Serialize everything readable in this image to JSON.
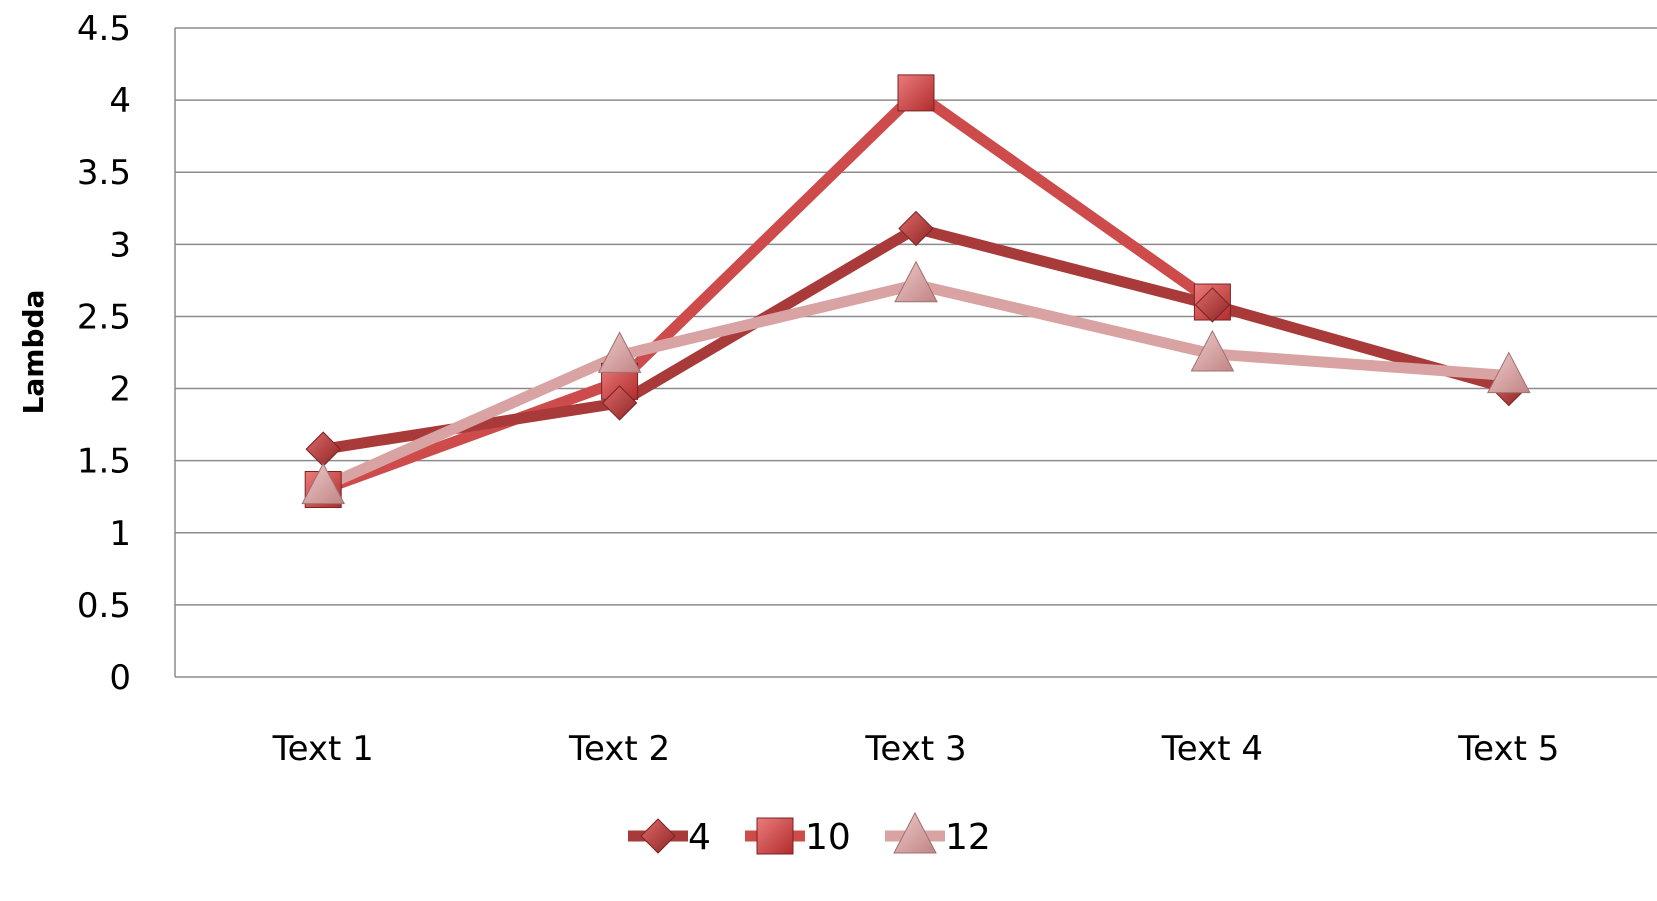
{
  "chart_data": {
    "type": "line",
    "categories": [
      "Text 1",
      "Text 2",
      "Text 3",
      "Text 4",
      "Text 5"
    ],
    "series": [
      {
        "name": "4",
        "values": [
          1.58,
          1.9,
          3.11,
          2.58,
          2.0
        ],
        "color": "#a93a3a",
        "marker": "diamond"
      },
      {
        "name": "10",
        "values": [
          1.3,
          2.05,
          4.05,
          2.6,
          null
        ],
        "color": "#cd4b4b",
        "marker": "square"
      },
      {
        "name": "12",
        "values": [
          1.32,
          2.23,
          2.72,
          2.24,
          2.09
        ],
        "color": "#d9a3a3",
        "marker": "triangle"
      }
    ],
    "y_ticks": [
      "0",
      "0.5",
      "1",
      "1.5",
      "2",
      "2.5",
      "3",
      "3.5",
      "4",
      "4.5"
    ],
    "ylabel": "Lambda",
    "xlabel": "",
    "title": "",
    "ylim": [
      0,
      4.5
    ],
    "grid": true,
    "legend": "bottom"
  }
}
